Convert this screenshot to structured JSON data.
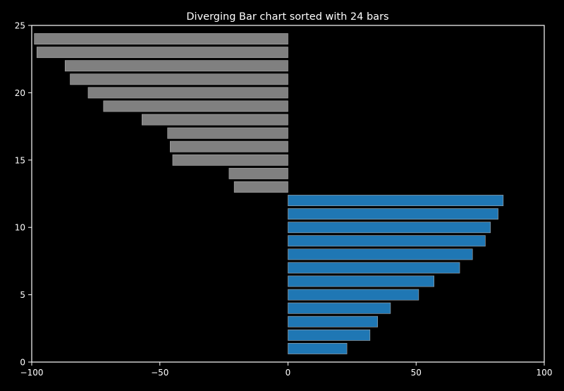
{
  "chart_data": {
    "type": "bar",
    "orientation": "horizontal",
    "title": "Diverging Bar chart sorted with 24 bars",
    "xlabel": "",
    "ylabel": "",
    "xlim": [
      -100,
      100
    ],
    "ylim": [
      0,
      25
    ],
    "xticks": [
      -100,
      -50,
      0,
      50,
      100
    ],
    "xtick_labels": [
      "−100",
      "−50",
      "0",
      "50",
      "100"
    ],
    "yticks": [
      0,
      5,
      10,
      15,
      20,
      25
    ],
    "ytick_labels": [
      "0",
      "5",
      "10",
      "15",
      "20",
      "25"
    ],
    "grid": false,
    "legend": "none",
    "y_positions": [
      1,
      2,
      3,
      4,
      5,
      6,
      7,
      8,
      9,
      10,
      11,
      12,
      13,
      14,
      15,
      16,
      17,
      18,
      19,
      20,
      21,
      22,
      23,
      24
    ],
    "values": [
      23,
      32,
      35,
      40,
      51,
      57,
      67,
      72,
      77,
      79,
      82,
      84,
      -21,
      -23,
      -45,
      -46,
      -47,
      -57,
      -72,
      -78,
      -85,
      -87,
      -98,
      -99
    ],
    "colors": {
      "positive": "#1f77b4",
      "negative": "#808080",
      "background": "#000000",
      "axes": "#ffffff",
      "text": "#ffffff"
    }
  }
}
